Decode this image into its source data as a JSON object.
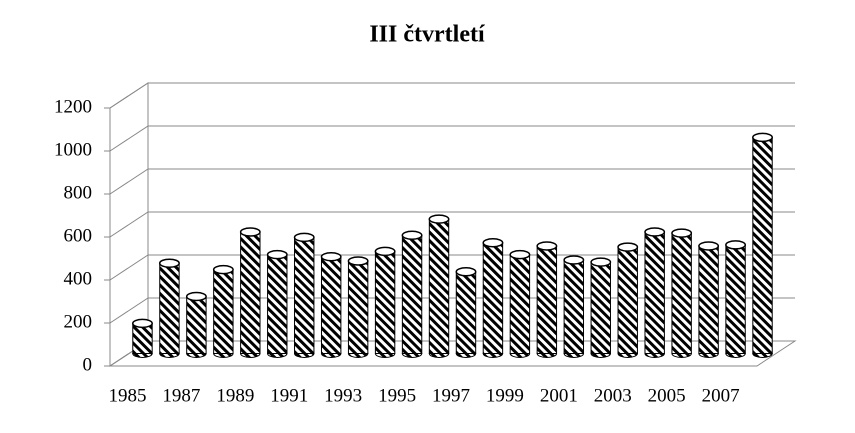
{
  "chart_data": {
    "type": "bar",
    "title": "III čtvrtletí",
    "categories": [
      "1985",
      null,
      "1987",
      null,
      "1989",
      null,
      "1991",
      null,
      "1993",
      null,
      "1995",
      null,
      "1997",
      null,
      "1999",
      null,
      "2001",
      null,
      "2003",
      null,
      "2005",
      null,
      "2007",
      null
    ],
    "values": [
      140,
      420,
      265,
      390,
      565,
      460,
      540,
      450,
      430,
      475,
      550,
      625,
      380,
      515,
      460,
      500,
      435,
      425,
      495,
      565,
      560,
      500,
      505,
      1005
    ],
    "color": "#000000",
    "ylim": [
      0,
      1200
    ],
    "yticks": [
      0,
      200,
      400,
      600,
      800,
      1000,
      1200
    ],
    "grid": true
  }
}
